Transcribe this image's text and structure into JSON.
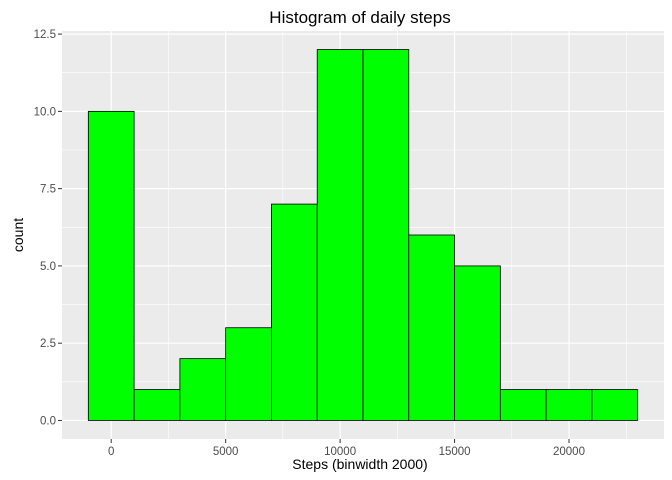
{
  "chart_data": {
    "type": "bar",
    "title": "Histogram of daily steps",
    "xlabel": "Steps (binwidth 2000)",
    "ylabel": "count",
    "binwidth": 2000,
    "bins": [
      {
        "x": 0,
        "count": 10
      },
      {
        "x": 2000,
        "count": 1
      },
      {
        "x": 4000,
        "count": 2
      },
      {
        "x": 6000,
        "count": 3
      },
      {
        "x": 8000,
        "count": 7
      },
      {
        "x": 10000,
        "count": 12
      },
      {
        "x": 12000,
        "count": 12
      },
      {
        "x": 14000,
        "count": 6
      },
      {
        "x": 16000,
        "count": 5
      },
      {
        "x": 18000,
        "count": 1
      },
      {
        "x": 20000,
        "count": 1
      },
      {
        "x": 22000,
        "count": 1
      }
    ],
    "x_ticks": [
      0,
      5000,
      10000,
      15000,
      20000
    ],
    "y_ticks": [
      "0.0",
      "2.5",
      "5.0",
      "7.5",
      "10.0",
      "12.5"
    ],
    "xlim": [
      -2150,
      24150
    ],
    "ylim": [
      -0.6,
      12.6
    ],
    "grid": true,
    "colors": {
      "bar_fill": "#00ff00",
      "bar_stroke": "#000000",
      "panel": "#ebebeb",
      "grid": "#ffffff"
    }
  }
}
